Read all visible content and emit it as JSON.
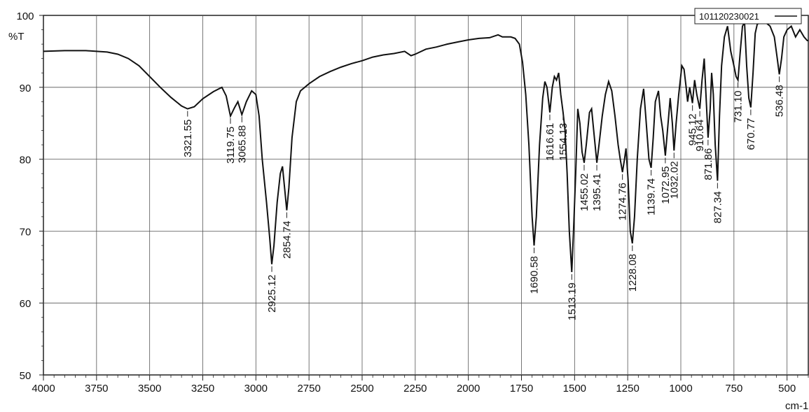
{
  "chart_data": {
    "type": "line",
    "ylabel": "%T",
    "xlabel": "cm-1",
    "xlim": [
      4000,
      400
    ],
    "ylim": [
      50,
      100
    ],
    "x_ticks": [
      4000,
      3750,
      3500,
      3250,
      3000,
      2750,
      2500,
      2250,
      2000,
      1750,
      1500,
      1250,
      1000,
      750,
      500
    ],
    "y_ticks": [
      50,
      60,
      70,
      80,
      90,
      100
    ],
    "grid": true,
    "legend_position": "top-right",
    "series": [
      {
        "name": "101120230021",
        "color": "#111111",
        "points": [
          [
            4000,
            95.0
          ],
          [
            3900,
            95.1
          ],
          [
            3800,
            95.1
          ],
          [
            3750,
            95.0
          ],
          [
            3700,
            94.9
          ],
          [
            3650,
            94.6
          ],
          [
            3600,
            94.0
          ],
          [
            3550,
            93.0
          ],
          [
            3500,
            91.5
          ],
          [
            3450,
            90.0
          ],
          [
            3400,
            88.6
          ],
          [
            3350,
            87.4
          ],
          [
            3321.55,
            87.0
          ],
          [
            3290,
            87.3
          ],
          [
            3250,
            88.4
          ],
          [
            3200,
            89.4
          ],
          [
            3160,
            90.0
          ],
          [
            3140,
            88.8
          ],
          [
            3119.75,
            86.0
          ],
          [
            3100,
            87.2
          ],
          [
            3085,
            88.0
          ],
          [
            3065.88,
            86.2
          ],
          [
            3045,
            88.0
          ],
          [
            3020,
            89.5
          ],
          [
            3000,
            89.0
          ],
          [
            2985,
            86.0
          ],
          [
            2970,
            80.0
          ],
          [
            2950,
            74.0
          ],
          [
            2935,
            69.0
          ],
          [
            2925.12,
            65.4
          ],
          [
            2915,
            68.0
          ],
          [
            2900,
            74.0
          ],
          [
            2885,
            78.0
          ],
          [
            2875,
            79.0
          ],
          [
            2865,
            76.0
          ],
          [
            2854.74,
            72.9
          ],
          [
            2845,
            76.0
          ],
          [
            2830,
            83.0
          ],
          [
            2810,
            88.0
          ],
          [
            2790,
            89.5
          ],
          [
            2750,
            90.5
          ],
          [
            2700,
            91.5
          ],
          [
            2650,
            92.2
          ],
          [
            2600,
            92.8
          ],
          [
            2550,
            93.3
          ],
          [
            2500,
            93.7
          ],
          [
            2450,
            94.2
          ],
          [
            2400,
            94.5
          ],
          [
            2350,
            94.7
          ],
          [
            2300,
            95.0
          ],
          [
            2270,
            94.4
          ],
          [
            2250,
            94.6
          ],
          [
            2200,
            95.3
          ],
          [
            2150,
            95.6
          ],
          [
            2100,
            96.0
          ],
          [
            2050,
            96.3
          ],
          [
            2000,
            96.6
          ],
          [
            1950,
            96.8
          ],
          [
            1900,
            96.9
          ],
          [
            1860,
            97.3
          ],
          [
            1840,
            97.0
          ],
          [
            1800,
            97.0
          ],
          [
            1780,
            96.8
          ],
          [
            1760,
            96.0
          ],
          [
            1745,
            93.5
          ],
          [
            1730,
            89.0
          ],
          [
            1715,
            82.0
          ],
          [
            1700,
            72.0
          ],
          [
            1690.58,
            68.0
          ],
          [
            1680,
            72.0
          ],
          [
            1665,
            82.0
          ],
          [
            1650,
            88.5
          ],
          [
            1640,
            90.8
          ],
          [
            1630,
            90.0
          ],
          [
            1616.61,
            86.5
          ],
          [
            1605,
            90.0
          ],
          [
            1595,
            91.5
          ],
          [
            1585,
            91.0
          ],
          [
            1575,
            92.0
          ],
          [
            1565,
            89.0
          ],
          [
            1554.13,
            86.5
          ],
          [
            1545,
            84.0
          ],
          [
            1535,
            78.0
          ],
          [
            1525,
            70.0
          ],
          [
            1513.19,
            64.3
          ],
          [
            1505,
            70.0
          ],
          [
            1495,
            78.0
          ],
          [
            1485,
            87.0
          ],
          [
            1475,
            85.0
          ],
          [
            1465,
            81.0
          ],
          [
            1455.02,
            79.5
          ],
          [
            1445,
            82.0
          ],
          [
            1430,
            86.5
          ],
          [
            1420,
            87.0
          ],
          [
            1410,
            84.0
          ],
          [
            1395.41,
            79.5
          ],
          [
            1385,
            82.0
          ],
          [
            1370,
            86.0
          ],
          [
            1355,
            89.0
          ],
          [
            1340,
            90.8
          ],
          [
            1325,
            89.5
          ],
          [
            1310,
            86.0
          ],
          [
            1295,
            82.0
          ],
          [
            1285,
            80.0
          ],
          [
            1274.76,
            78.2
          ],
          [
            1265,
            80.0
          ],
          [
            1258,
            81.5
          ],
          [
            1248,
            77.0
          ],
          [
            1238,
            70.0
          ],
          [
            1228.08,
            68.3
          ],
          [
            1218,
            72.0
          ],
          [
            1205,
            80.0
          ],
          [
            1190,
            87.0
          ],
          [
            1175,
            89.8
          ],
          [
            1165,
            86.0
          ],
          [
            1150,
            80.0
          ],
          [
            1139.74,
            78.8
          ],
          [
            1130,
            83.0
          ],
          [
            1120,
            88.0
          ],
          [
            1105,
            89.5
          ],
          [
            1095,
            86.0
          ],
          [
            1085,
            84.0
          ],
          [
            1072.95,
            80.5
          ],
          [
            1060,
            85.0
          ],
          [
            1050,
            88.5
          ],
          [
            1040,
            85.0
          ],
          [
            1032.02,
            81.2
          ],
          [
            1022,
            85.0
          ],
          [
            1010,
            89.0
          ],
          [
            995,
            93.0
          ],
          [
            985,
            92.5
          ],
          [
            975,
            90.0
          ],
          [
            968,
            88.0
          ],
          [
            958,
            90.0
          ],
          [
            945.12,
            87.8
          ],
          [
            935,
            91.0
          ],
          [
            925,
            89.0
          ],
          [
            910.64,
            87.0
          ],
          [
            900,
            91.0
          ],
          [
            890,
            94.0
          ],
          [
            880,
            88.0
          ],
          [
            871.86,
            83.0
          ],
          [
            862,
            87.0
          ],
          [
            855,
            92.0
          ],
          [
            847,
            89.0
          ],
          [
            838,
            82.0
          ],
          [
            827.34,
            77.0
          ],
          [
            818,
            86.0
          ],
          [
            808,
            93.0
          ],
          [
            795,
            97.0
          ],
          [
            780,
            98.5
          ],
          [
            765,
            95.0
          ],
          [
            750,
            93.0
          ],
          [
            740,
            91.5
          ],
          [
            731.1,
            91.0
          ],
          [
            720,
            95.0
          ],
          [
            710,
            98.5
          ],
          [
            700,
            99.0
          ],
          [
            690,
            93.0
          ],
          [
            680,
            88.5
          ],
          [
            670.77,
            87.2
          ],
          [
            660,
            92.0
          ],
          [
            650,
            97.5
          ],
          [
            640,
            98.8
          ],
          [
            620,
            99.0
          ],
          [
            600,
            99.0
          ],
          [
            580,
            98.5
          ],
          [
            560,
            97.0
          ],
          [
            546,
            94.0
          ],
          [
            536.48,
            91.8
          ],
          [
            526,
            94.0
          ],
          [
            515,
            97.0
          ],
          [
            500,
            98.0
          ],
          [
            480,
            98.5
          ],
          [
            460,
            97.0
          ],
          [
            440,
            98.0
          ],
          [
            420,
            97.0
          ],
          [
            405,
            96.5
          ],
          [
            400,
            96.5
          ]
        ]
      }
    ],
    "peaks": [
      {
        "x": 3321.55,
        "label": "3321.55"
      },
      {
        "x": 3119.75,
        "label": "3119.75"
      },
      {
        "x": 3065.88,
        "label": "3065.88"
      },
      {
        "x": 2925.12,
        "label": "2925.12"
      },
      {
        "x": 2854.74,
        "label": "2854.74"
      },
      {
        "x": 1690.58,
        "label": "1690.58"
      },
      {
        "x": 1616.61,
        "label": "1616.61"
      },
      {
        "x": 1554.13,
        "label": "1554.13"
      },
      {
        "x": 1513.19,
        "label": "1513.19"
      },
      {
        "x": 1455.02,
        "label": "1455.02"
      },
      {
        "x": 1395.41,
        "label": "1395.41"
      },
      {
        "x": 1274.76,
        "label": "1274.76"
      },
      {
        "x": 1228.08,
        "label": "1228.08"
      },
      {
        "x": 1139.74,
        "label": "1139.74"
      },
      {
        "x": 1072.95,
        "label": "1072.95"
      },
      {
        "x": 1032.02,
        "label": "1032.02"
      },
      {
        "x": 945.12,
        "label": "945.12"
      },
      {
        "x": 910.64,
        "label": "910.64"
      },
      {
        "x": 871.86,
        "label": "871.86"
      },
      {
        "x": 827.34,
        "label": "827.34"
      },
      {
        "x": 731.1,
        "label": "731.10"
      },
      {
        "x": 670.77,
        "label": "670.77"
      },
      {
        "x": 536.48,
        "label": "536.48"
      }
    ]
  }
}
